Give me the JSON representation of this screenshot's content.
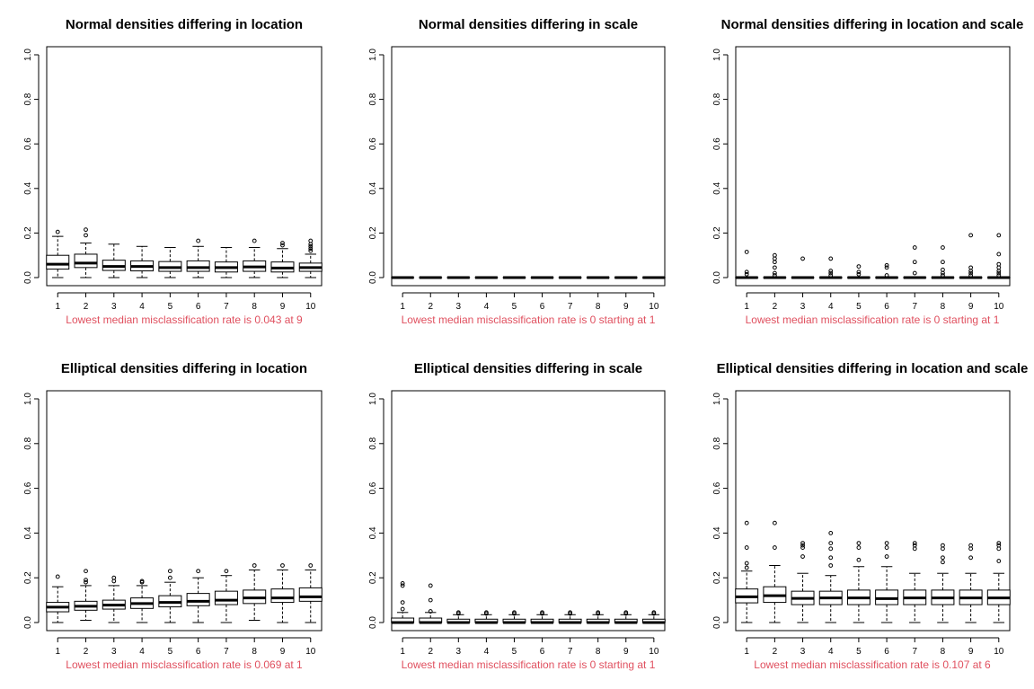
{
  "colors": {
    "note": "#e0505f",
    "ink": "#000000",
    "box_fill": "#ffffff"
  },
  "chart_data": [
    {
      "type": "box",
      "title": "Normal densities differing in location",
      "note": "Lowest median misclassification rate is 0.043 at 9",
      "categories": [
        "1",
        "2",
        "3",
        "4",
        "5",
        "6",
        "7",
        "8",
        "9",
        "10"
      ],
      "yticks": [
        "0.0",
        "0.2",
        "0.4",
        "0.6",
        "0.8",
        "1.0"
      ],
      "ylim": [
        0,
        1
      ],
      "boxes": [
        {
          "min": 0.0,
          "q1": 0.038,
          "median": 0.06,
          "q3": 0.1,
          "max": 0.185,
          "outliers": [
            0.205
          ]
        },
        {
          "min": 0.0,
          "q1": 0.045,
          "median": 0.065,
          "q3": 0.105,
          "max": 0.155,
          "outliers": [
            0.19,
            0.215
          ]
        },
        {
          "min": 0.0,
          "q1": 0.032,
          "median": 0.05,
          "q3": 0.078,
          "max": 0.15,
          "outliers": []
        },
        {
          "min": 0.0,
          "q1": 0.03,
          "median": 0.05,
          "q3": 0.075,
          "max": 0.14,
          "outliers": []
        },
        {
          "min": 0.0,
          "q1": 0.028,
          "median": 0.045,
          "q3": 0.072,
          "max": 0.135,
          "outliers": []
        },
        {
          "min": 0.0,
          "q1": 0.028,
          "median": 0.045,
          "q3": 0.075,
          "max": 0.14,
          "outliers": [
            0.165
          ]
        },
        {
          "min": 0.0,
          "q1": 0.025,
          "median": 0.045,
          "q3": 0.07,
          "max": 0.135,
          "outliers": []
        },
        {
          "min": 0.0,
          "q1": 0.028,
          "median": 0.048,
          "q3": 0.075,
          "max": 0.135,
          "outliers": [
            0.165
          ]
        },
        {
          "min": 0.0,
          "q1": 0.025,
          "median": 0.043,
          "q3": 0.07,
          "max": 0.13,
          "outliers": [
            0.145,
            0.155
          ]
        },
        {
          "min": 0.0,
          "q1": 0.028,
          "median": 0.045,
          "q3": 0.065,
          "max": 0.105,
          "outliers": [
            0.12,
            0.13,
            0.14,
            0.15,
            0.165
          ]
        }
      ]
    },
    {
      "type": "box",
      "title": "Normal densities differing in scale",
      "note": "Lowest median misclassification rate is 0 starting at 1",
      "categories": [
        "1",
        "2",
        "3",
        "4",
        "5",
        "6",
        "7",
        "8",
        "9",
        "10"
      ],
      "yticks": [
        "0.0",
        "0.2",
        "0.4",
        "0.6",
        "0.8",
        "1.0"
      ],
      "ylim": [
        0,
        1
      ],
      "boxes": [
        {
          "min": 0,
          "q1": 0,
          "median": 0,
          "q3": 0,
          "max": 0,
          "outliers": []
        },
        {
          "min": 0,
          "q1": 0,
          "median": 0,
          "q3": 0,
          "max": 0,
          "outliers": []
        },
        {
          "min": 0,
          "q1": 0,
          "median": 0,
          "q3": 0,
          "max": 0,
          "outliers": []
        },
        {
          "min": 0,
          "q1": 0,
          "median": 0,
          "q3": 0,
          "max": 0,
          "outliers": []
        },
        {
          "min": 0,
          "q1": 0,
          "median": 0,
          "q3": 0,
          "max": 0,
          "outliers": []
        },
        {
          "min": 0,
          "q1": 0,
          "median": 0,
          "q3": 0,
          "max": 0,
          "outliers": []
        },
        {
          "min": 0,
          "q1": 0,
          "median": 0,
          "q3": 0,
          "max": 0,
          "outliers": []
        },
        {
          "min": 0,
          "q1": 0,
          "median": 0,
          "q3": 0,
          "max": 0,
          "outliers": []
        },
        {
          "min": 0,
          "q1": 0,
          "median": 0,
          "q3": 0,
          "max": 0,
          "outliers": []
        },
        {
          "min": 0,
          "q1": 0,
          "median": 0,
          "q3": 0,
          "max": 0,
          "outliers": []
        }
      ]
    },
    {
      "type": "box",
      "title": "Normal densities differing in location and scale",
      "note": "Lowest median misclassification rate is 0 starting at 1",
      "categories": [
        "1",
        "2",
        "3",
        "4",
        "5",
        "6",
        "7",
        "8",
        "9",
        "10"
      ],
      "yticks": [
        "0.0",
        "0.2",
        "0.4",
        "0.6",
        "0.8",
        "1.0"
      ],
      "ylim": [
        0,
        1
      ],
      "boxes": [
        {
          "min": 0,
          "q1": 0,
          "median": 0,
          "q3": 0,
          "max": 0,
          "outliers": [
            0.015,
            0.025,
            0.115
          ]
        },
        {
          "min": 0,
          "q1": 0,
          "median": 0,
          "q3": 0,
          "max": 0,
          "outliers": [
            0.01,
            0.02,
            0.045,
            0.07,
            0.085,
            0.1
          ]
        },
        {
          "min": 0,
          "q1": 0,
          "median": 0,
          "q3": 0,
          "max": 0,
          "outliers": [
            0.085
          ]
        },
        {
          "min": 0,
          "q1": 0,
          "median": 0,
          "q3": 0,
          "max": 0,
          "outliers": [
            0.01,
            0.02,
            0.03,
            0.085
          ]
        },
        {
          "min": 0,
          "q1": 0,
          "median": 0,
          "q3": 0,
          "max": 0,
          "outliers": [
            0.015,
            0.025,
            0.05
          ]
        },
        {
          "min": 0,
          "q1": 0,
          "median": 0,
          "q3": 0,
          "max": 0,
          "outliers": [
            0.01,
            0.045,
            0.055
          ]
        },
        {
          "min": 0,
          "q1": 0,
          "median": 0,
          "q3": 0,
          "max": 0,
          "outliers": [
            0.02,
            0.07,
            0.135
          ]
        },
        {
          "min": 0,
          "q1": 0,
          "median": 0,
          "q3": 0,
          "max": 0,
          "outliers": [
            0.01,
            0.02,
            0.035,
            0.07,
            0.135
          ]
        },
        {
          "min": 0,
          "q1": 0,
          "median": 0,
          "q3": 0,
          "max": 0,
          "outliers": [
            0.01,
            0.02,
            0.03,
            0.045,
            0.19
          ]
        },
        {
          "min": 0,
          "q1": 0,
          "median": 0,
          "q3": 0,
          "max": 0,
          "outliers": [
            0.01,
            0.02,
            0.03,
            0.045,
            0.06,
            0.105,
            0.19
          ]
        }
      ]
    },
    {
      "type": "box",
      "title": "Elliptical densities differing in location",
      "note": "Lowest median misclassification rate is 0.069 at 1",
      "categories": [
        "1",
        "2",
        "3",
        "4",
        "5",
        "6",
        "7",
        "8",
        "9",
        "10"
      ],
      "yticks": [
        "0.0",
        "0.2",
        "0.4",
        "0.6",
        "0.8",
        "1.0"
      ],
      "ylim": [
        0,
        1
      ],
      "boxes": [
        {
          "min": 0.0,
          "q1": 0.048,
          "median": 0.069,
          "q3": 0.09,
          "max": 0.16,
          "outliers": [
            0.205
          ]
        },
        {
          "min": 0.01,
          "q1": 0.055,
          "median": 0.073,
          "q3": 0.095,
          "max": 0.165,
          "outliers": [
            0.18,
            0.19,
            0.23
          ]
        },
        {
          "min": 0.0,
          "q1": 0.06,
          "median": 0.078,
          "q3": 0.1,
          "max": 0.165,
          "outliers": [
            0.185,
            0.2
          ]
        },
        {
          "min": 0.0,
          "q1": 0.063,
          "median": 0.085,
          "q3": 0.11,
          "max": 0.165,
          "outliers": [
            0.18,
            0.185
          ]
        },
        {
          "min": 0.0,
          "q1": 0.07,
          "median": 0.09,
          "q3": 0.12,
          "max": 0.18,
          "outliers": [
            0.2,
            0.23
          ]
        },
        {
          "min": 0.0,
          "q1": 0.075,
          "median": 0.095,
          "q3": 0.13,
          "max": 0.2,
          "outliers": [
            0.23
          ]
        },
        {
          "min": 0.0,
          "q1": 0.08,
          "median": 0.1,
          "q3": 0.14,
          "max": 0.21,
          "outliers": [
            0.23
          ]
        },
        {
          "min": 0.01,
          "q1": 0.085,
          "median": 0.11,
          "q3": 0.145,
          "max": 0.235,
          "outliers": [
            0.255
          ]
        },
        {
          "min": 0.0,
          "q1": 0.09,
          "median": 0.11,
          "q3": 0.15,
          "max": 0.235,
          "outliers": [
            0.255
          ]
        },
        {
          "min": 0.0,
          "q1": 0.095,
          "median": 0.115,
          "q3": 0.155,
          "max": 0.235,
          "outliers": [
            0.255
          ]
        }
      ]
    },
    {
      "type": "box",
      "title": "Elliptical densities differing in scale",
      "note": "Lowest median misclassification rate is 0 starting at 1",
      "categories": [
        "1",
        "2",
        "3",
        "4",
        "5",
        "6",
        "7",
        "8",
        "9",
        "10"
      ],
      "yticks": [
        "0.0",
        "0.2",
        "0.4",
        "0.6",
        "0.8",
        "1.0"
      ],
      "ylim": [
        0,
        1
      ],
      "boxes": [
        {
          "min": 0,
          "q1": 0,
          "median": 0,
          "q3": 0.02,
          "max": 0.045,
          "outliers": [
            0.06,
            0.09,
            0.165,
            0.175
          ]
        },
        {
          "min": 0,
          "q1": 0,
          "median": 0,
          "q3": 0.02,
          "max": 0.045,
          "outliers": [
            0.05,
            0.1,
            0.165
          ]
        },
        {
          "min": 0,
          "q1": 0,
          "median": 0,
          "q3": 0.015,
          "max": 0.035,
          "outliers": [
            0.04,
            0.045
          ]
        },
        {
          "min": 0,
          "q1": 0,
          "median": 0,
          "q3": 0.015,
          "max": 0.035,
          "outliers": [
            0.04,
            0.045
          ]
        },
        {
          "min": 0,
          "q1": 0,
          "median": 0,
          "q3": 0.015,
          "max": 0.035,
          "outliers": [
            0.04,
            0.045
          ]
        },
        {
          "min": 0,
          "q1": 0,
          "median": 0,
          "q3": 0.015,
          "max": 0.035,
          "outliers": [
            0.04,
            0.045
          ]
        },
        {
          "min": 0,
          "q1": 0,
          "median": 0,
          "q3": 0.015,
          "max": 0.035,
          "outliers": [
            0.04,
            0.045
          ]
        },
        {
          "min": 0,
          "q1": 0,
          "median": 0,
          "q3": 0.015,
          "max": 0.035,
          "outliers": [
            0.04,
            0.045
          ]
        },
        {
          "min": 0,
          "q1": 0,
          "median": 0,
          "q3": 0.015,
          "max": 0.035,
          "outliers": [
            0.04,
            0.045
          ]
        },
        {
          "min": 0,
          "q1": 0,
          "median": 0,
          "q3": 0.015,
          "max": 0.035,
          "outliers": [
            0.04,
            0.045
          ]
        }
      ]
    },
    {
      "type": "box",
      "title": "Elliptical densities differing in location and scale",
      "note": "Lowest median misclassification rate is 0.107 at 6",
      "categories": [
        "1",
        "2",
        "3",
        "4",
        "5",
        "6",
        "7",
        "8",
        "9",
        "10"
      ],
      "yticks": [
        "0.0",
        "0.2",
        "0.4",
        "0.6",
        "0.8",
        "1.0"
      ],
      "ylim": [
        0,
        1
      ],
      "boxes": [
        {
          "min": 0.0,
          "q1": 0.088,
          "median": 0.115,
          "q3": 0.15,
          "max": 0.23,
          "outliers": [
            0.245,
            0.265,
            0.335,
            0.445
          ]
        },
        {
          "min": 0.0,
          "q1": 0.09,
          "median": 0.12,
          "q3": 0.16,
          "max": 0.255,
          "outliers": [
            0.335,
            0.445
          ]
        },
        {
          "min": 0.0,
          "q1": 0.08,
          "median": 0.108,
          "q3": 0.14,
          "max": 0.22,
          "outliers": [
            0.295,
            0.335,
            0.345,
            0.355
          ]
        },
        {
          "min": 0.0,
          "q1": 0.08,
          "median": 0.11,
          "q3": 0.14,
          "max": 0.21,
          "outliers": [
            0.255,
            0.29,
            0.33,
            0.355,
            0.4
          ]
        },
        {
          "min": 0.0,
          "q1": 0.08,
          "median": 0.11,
          "q3": 0.145,
          "max": 0.25,
          "outliers": [
            0.28,
            0.335,
            0.355
          ]
        },
        {
          "min": 0.0,
          "q1": 0.08,
          "median": 0.107,
          "q3": 0.145,
          "max": 0.25,
          "outliers": [
            0.295,
            0.335,
            0.355
          ]
        },
        {
          "min": 0.0,
          "q1": 0.08,
          "median": 0.11,
          "q3": 0.145,
          "max": 0.22,
          "outliers": [
            0.33,
            0.345,
            0.355
          ]
        },
        {
          "min": 0.0,
          "q1": 0.08,
          "median": 0.11,
          "q3": 0.145,
          "max": 0.22,
          "outliers": [
            0.27,
            0.29,
            0.33,
            0.345
          ]
        },
        {
          "min": 0.0,
          "q1": 0.08,
          "median": 0.11,
          "q3": 0.145,
          "max": 0.22,
          "outliers": [
            0.29,
            0.33,
            0.345
          ]
        },
        {
          "min": 0.0,
          "q1": 0.08,
          "median": 0.11,
          "q3": 0.145,
          "max": 0.22,
          "outliers": [
            0.275,
            0.33,
            0.345,
            0.355
          ]
        }
      ]
    }
  ]
}
